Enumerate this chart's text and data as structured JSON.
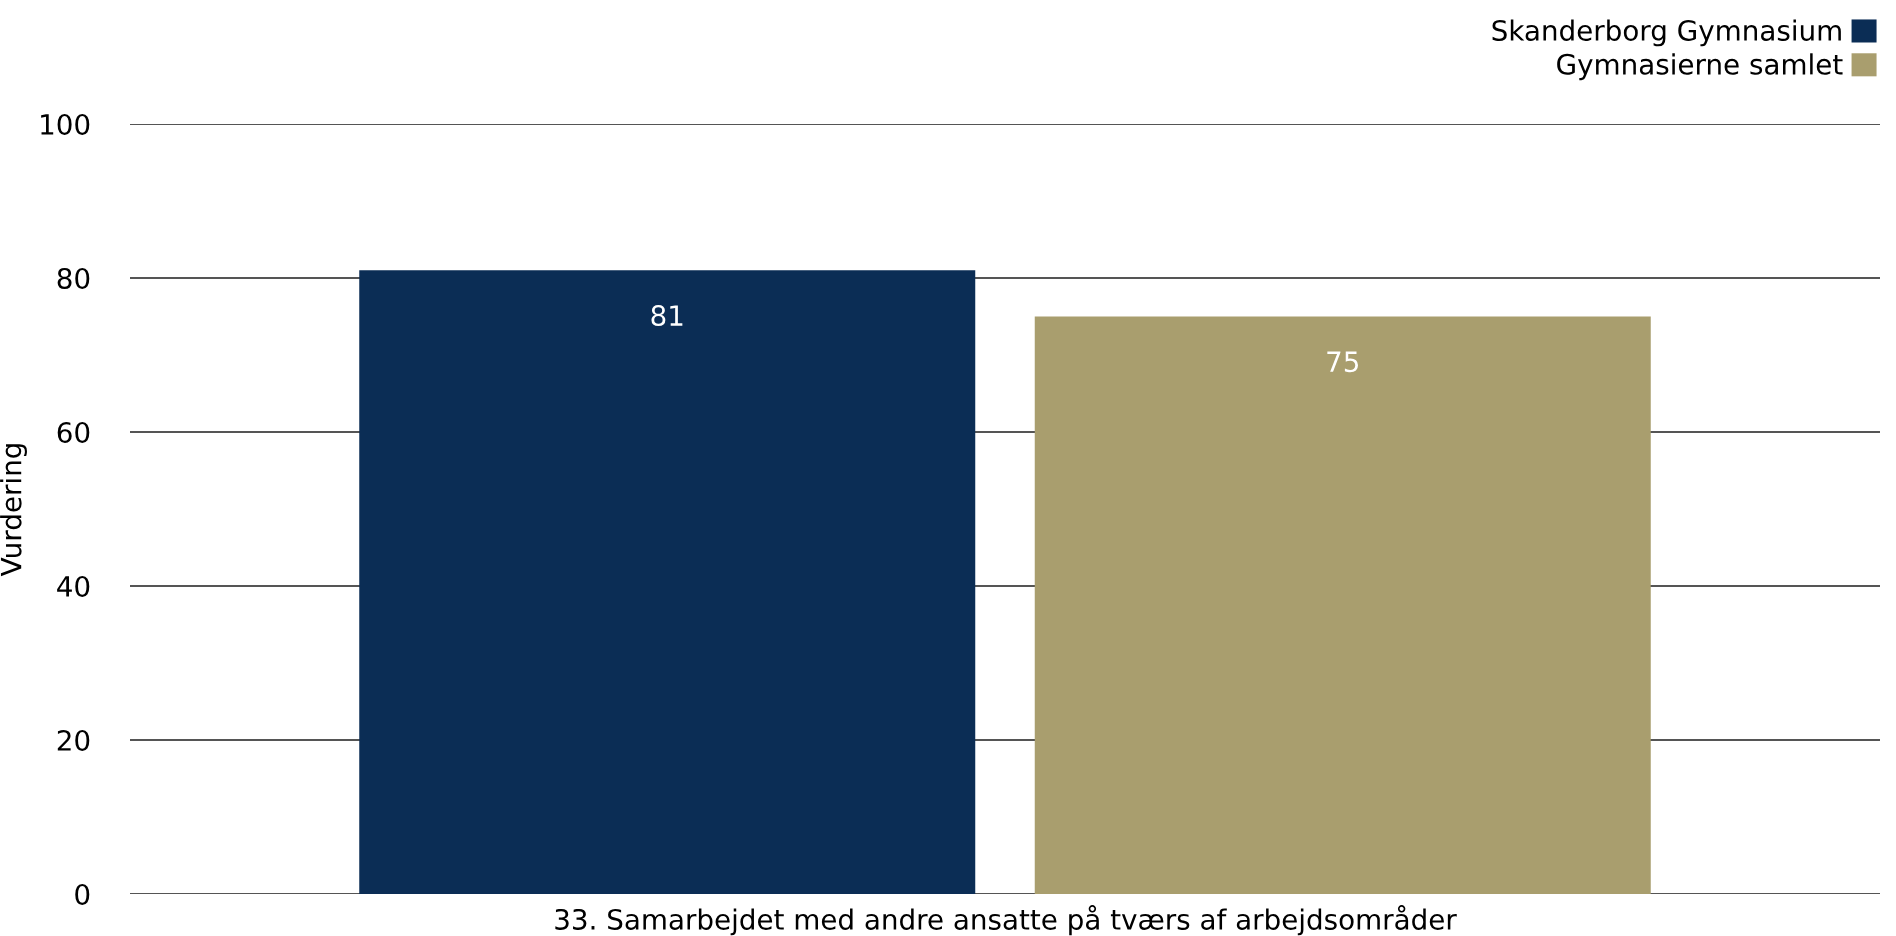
{
  "chart_data": {
    "type": "bar",
    "ylabel": "Vurdering",
    "categories": [
      "33. Samarbejdet med andre ansatte på tværs af arbejdsområder"
    ],
    "series": [
      {
        "name": "Skanderborg Gymnasium",
        "color": "#0b2d55",
        "values": [
          81
        ]
      },
      {
        "name": "Gymnasierne samlet",
        "color": "#a99e6e",
        "values": [
          75
        ]
      }
    ],
    "ylim": [
      0,
      100
    ],
    "yticks": [
      0,
      20,
      40,
      60,
      80,
      100
    ],
    "grid": "y",
    "legend": "top right",
    "data_labels": true
  }
}
